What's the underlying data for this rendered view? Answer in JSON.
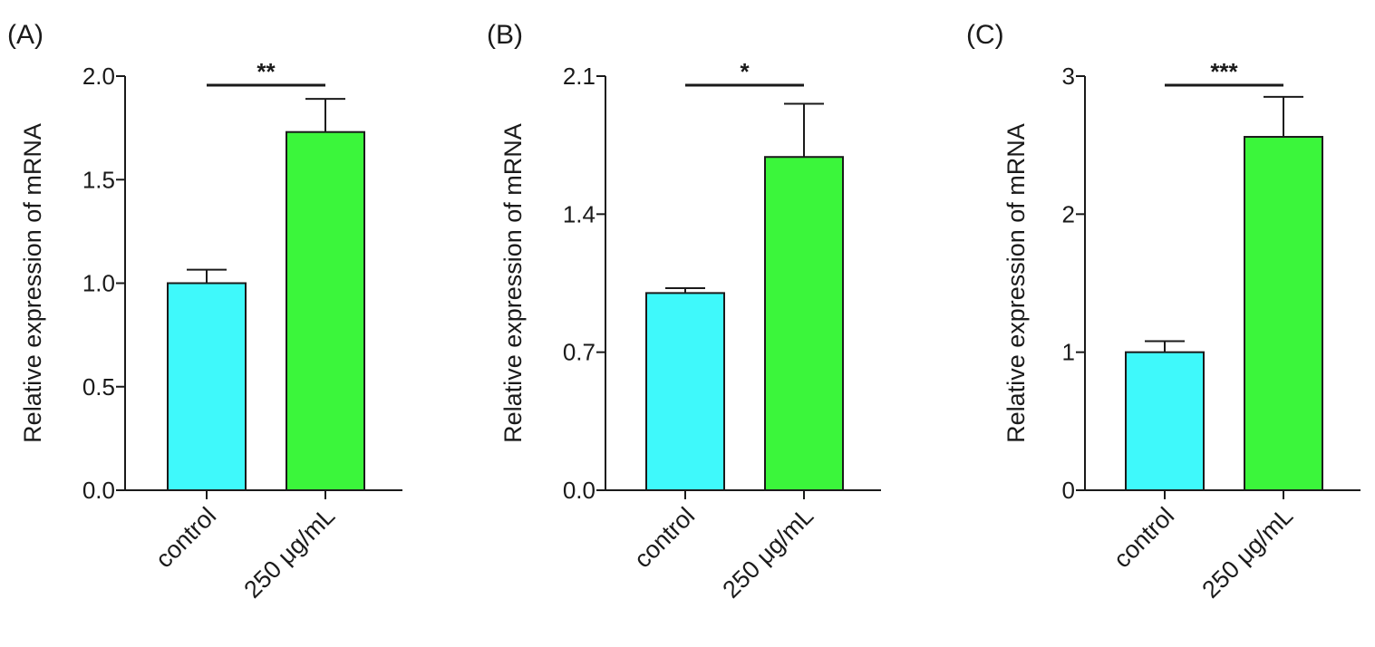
{
  "colors": {
    "control": "#3ff9fb",
    "treated": "#3bf63b",
    "axis": "#1a1a1a"
  },
  "chart_data": [
    {
      "type": "bar",
      "panel_label": "(A)",
      "ylabel": "Relative expression of mRNA",
      "ylim": [
        0,
        2.0
      ],
      "yticks": [
        "0.0",
        "0.5",
        "1.0",
        "1.5",
        "2.0"
      ],
      "categories": [
        "control",
        "250 μg/mL"
      ],
      "values": [
        1.0,
        1.73
      ],
      "errors": [
        0.065,
        0.16
      ],
      "significance": "**"
    },
    {
      "type": "bar",
      "panel_label": "(B)",
      "ylabel": "Relative expression of mRNA",
      "ylim": [
        0,
        2.1
      ],
      "yticks": [
        "0.0",
        "0.7",
        "1.4",
        "2.1"
      ],
      "categories": [
        "control",
        "250 μg/mL"
      ],
      "values": [
        1.0,
        1.69
      ],
      "errors": [
        0.025,
        0.27
      ],
      "significance": "*"
    },
    {
      "type": "bar",
      "panel_label": "(C)",
      "ylabel": "Relative expression of mRNA",
      "ylim": [
        0,
        3
      ],
      "yticks": [
        "0",
        "1",
        "2",
        "3"
      ],
      "categories": [
        "control",
        "250 μg/mL"
      ],
      "values": [
        1.0,
        2.56
      ],
      "errors": [
        0.08,
        0.29
      ],
      "significance": "***"
    }
  ]
}
